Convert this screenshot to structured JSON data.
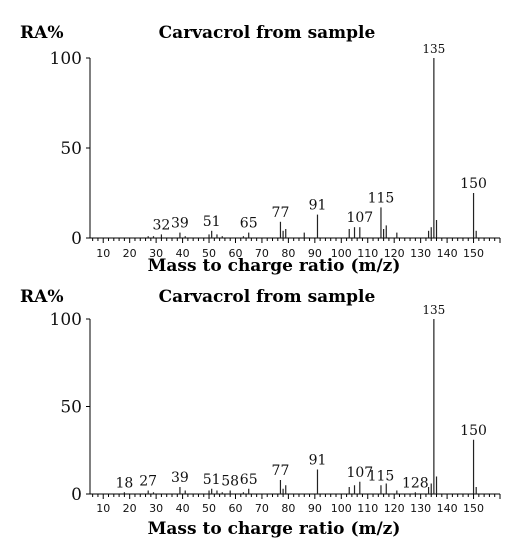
{
  "chart_data": [
    {
      "type": "bar",
      "title": "Carvacrol from sample",
      "ylabel": "RA%",
      "xlabel": "Mass to charge ratio (m/z)",
      "xlim": [
        5,
        160
      ],
      "ylim": [
        0,
        100
      ],
      "yticks": [
        0,
        50,
        100
      ],
      "xticks": [
        10,
        20,
        30,
        40,
        50,
        60,
        70,
        80,
        90,
        100,
        110,
        120,
        130,
        140,
        150
      ],
      "series": [
        {
          "x": [
            27,
            29,
            32,
            39,
            41,
            50,
            51,
            53,
            55,
            63,
            65,
            77,
            78,
            79,
            86,
            91,
            103,
            105,
            107,
            115,
            116,
            117,
            121,
            133,
            134,
            135,
            136,
            150,
            151
          ],
          "values": [
            1,
            1,
            2,
            3,
            1,
            2,
            4,
            2,
            1,
            1,
            3,
            9,
            4,
            5,
            3,
            13,
            5,
            6,
            6,
            17,
            5,
            7,
            3,
            4,
            6,
            100,
            10,
            25,
            4
          ]
        }
      ],
      "peak_labels": [
        {
          "x": 32,
          "text": "32"
        },
        {
          "x": 39,
          "text": "39"
        },
        {
          "x": 51,
          "text": "51"
        },
        {
          "x": 65,
          "text": "65"
        },
        {
          "x": 77,
          "text": "77"
        },
        {
          "x": 91,
          "text": "91"
        },
        {
          "x": 107,
          "text": "107"
        },
        {
          "x": 115,
          "text": "115"
        },
        {
          "x": 135,
          "text": "135"
        },
        {
          "x": 150,
          "text": "150"
        }
      ]
    },
    {
      "type": "bar",
      "title": "Carvacrol from sample",
      "ylabel": "RA%",
      "xlabel": "Mass to charge ratio (m/z)",
      "xlim": [
        5,
        160
      ],
      "ylim": [
        0,
        100
      ],
      "yticks": [
        0,
        50,
        100
      ],
      "xticks": [
        10,
        20,
        30,
        40,
        50,
        60,
        70,
        80,
        90,
        100,
        110,
        120,
        130,
        140,
        150
      ],
      "series": [
        {
          "x": [
            18,
            27,
            29,
            39,
            41,
            50,
            51,
            53,
            55,
            58,
            63,
            65,
            77,
            78,
            79,
            91,
            103,
            105,
            107,
            115,
            117,
            121,
            128,
            133,
            134,
            135,
            136,
            150,
            151
          ],
          "values": [
            1,
            2,
            1,
            4,
            2,
            2,
            3,
            2,
            1,
            2,
            1,
            3,
            8,
            3,
            5,
            14,
            4,
            5,
            7,
            5,
            6,
            2,
            1,
            4,
            6,
            100,
            10,
            31,
            4
          ]
        }
      ],
      "peak_labels": [
        {
          "x": 18,
          "text": "18"
        },
        {
          "x": 27,
          "text": "27"
        },
        {
          "x": 39,
          "text": "39"
        },
        {
          "x": 51,
          "text": "51"
        },
        {
          "x": 58,
          "text": "58"
        },
        {
          "x": 65,
          "text": "65"
        },
        {
          "x": 77,
          "text": "77"
        },
        {
          "x": 91,
          "text": "91"
        },
        {
          "x": 107,
          "text": "107"
        },
        {
          "x": 115,
          "text": "115"
        },
        {
          "x": 128,
          "text": "128"
        },
        {
          "x": 135,
          "text": "135"
        },
        {
          "x": 150,
          "text": "150"
        }
      ]
    }
  ]
}
